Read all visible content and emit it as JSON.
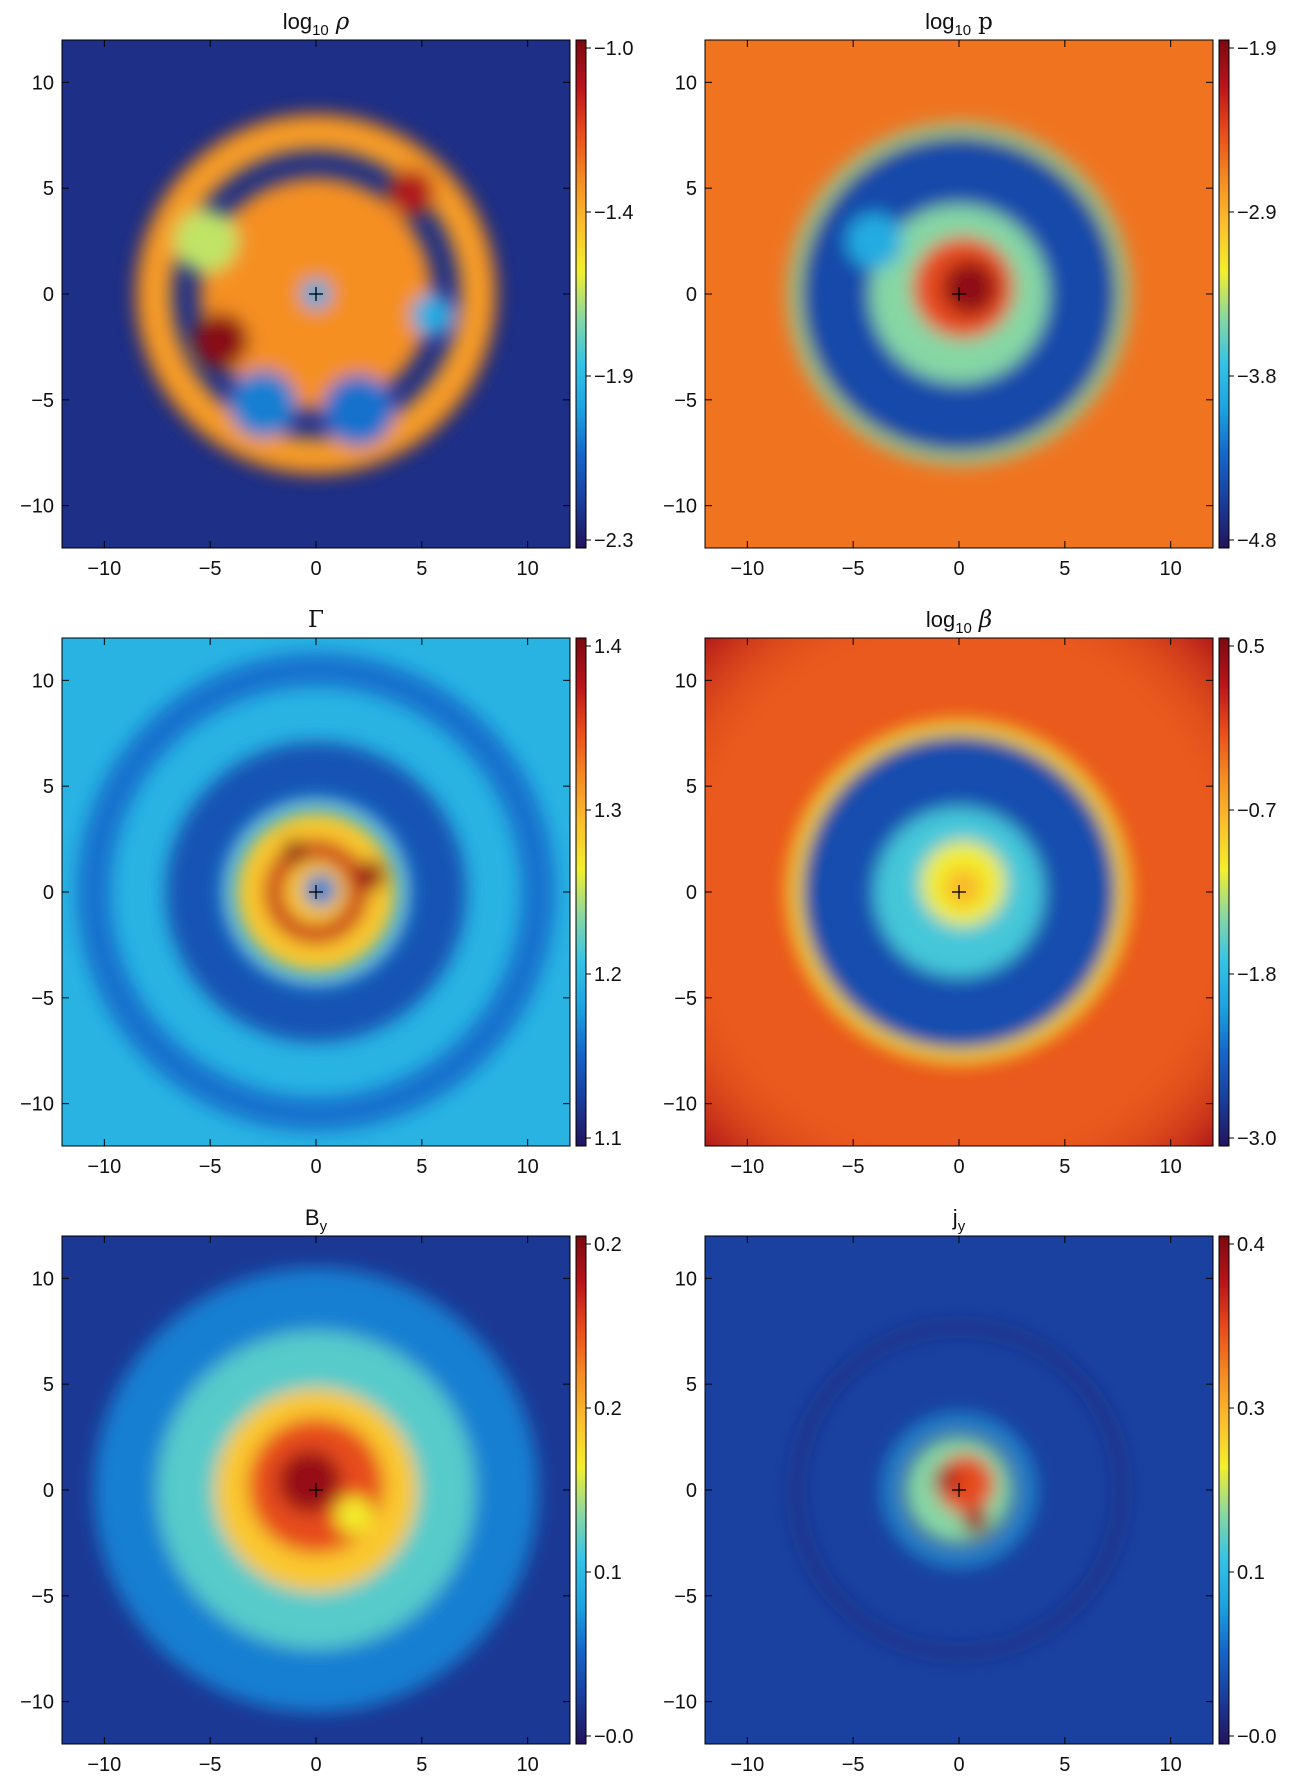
{
  "figure": {
    "colorscale": [
      "#22145c",
      "#1a3d9c",
      "#1565c8",
      "#1da2e0",
      "#35c3e6",
      "#8ad8a0",
      "#f3ef2c",
      "#fbbf2d",
      "#f48b23",
      "#e84c1b",
      "#b8141b",
      "#7a0a10"
    ]
  },
  "chart_data": [
    {
      "type": "heatmap",
      "id": "rho",
      "title_pre": "log",
      "title_sub": "10",
      "title_sym": "ρ",
      "title_sym_italic": true,
      "xlim": [
        -12,
        12
      ],
      "ylim": [
        -12,
        12
      ],
      "x_ticks": [
        -10,
        -5,
        0,
        5,
        10
      ],
      "y_ticks": [
        -10,
        -5,
        0,
        5,
        10
      ],
      "x_tick_labels": [
        "−10",
        "−5",
        "0",
        "5",
        "10"
      ],
      "y_tick_labels": [
        "−10",
        "−5",
        "0",
        "5",
        "10"
      ],
      "colorbar_range": [
        -2.3,
        -1.0
      ],
      "colorbar_labels": [
        "−1.0",
        "−1.4",
        "−1.9",
        "−2.3"
      ],
      "background_level": 0.06,
      "features": [
        {
          "kind": "ring",
          "r": 8.3,
          "width": 0.55,
          "level": 0.95
        },
        {
          "kind": "ring",
          "r": 7.6,
          "width": 1.6,
          "level": 0.7
        },
        {
          "kind": "blob",
          "x": 0,
          "y": 0,
          "r": 5.5,
          "level": 0.72
        },
        {
          "kind": "blob",
          "x": -4.5,
          "y": -2.2,
          "r": 1.3,
          "level": 0.98
        },
        {
          "kind": "blob",
          "x": -5.2,
          "y": 2.5,
          "r": 1.5,
          "level": 0.5
        },
        {
          "kind": "blob",
          "x": 4.5,
          "y": 4.8,
          "r": 1.1,
          "level": 0.92
        },
        {
          "kind": "blob",
          "x": -2.5,
          "y": -5.2,
          "r": 1.6,
          "level": 0.22
        },
        {
          "kind": "blob",
          "x": 2.0,
          "y": -5.5,
          "r": 1.7,
          "level": 0.2
        },
        {
          "kind": "blob",
          "x": 5.5,
          "y": -1.0,
          "r": 1.0,
          "level": 0.3
        },
        {
          "kind": "blob",
          "x": 0,
          "y": 0,
          "r": 0.7,
          "level": 0.3
        }
      ]
    },
    {
      "type": "heatmap",
      "id": "p",
      "title_pre": "log",
      "title_sub": "10",
      "title_sym": "p",
      "title_sym_italic": false,
      "xlim": [
        -12,
        12
      ],
      "ylim": [
        -12,
        12
      ],
      "x_ticks": [
        -10,
        -5,
        0,
        5,
        10
      ],
      "y_ticks": [
        -10,
        -5,
        0,
        5,
        10
      ],
      "x_tick_labels": [
        "−10",
        "−5",
        "0",
        "5",
        "10"
      ],
      "y_tick_labels": [
        "−10",
        "−5",
        "0",
        "5",
        "10"
      ],
      "colorbar_range": [
        -4.8,
        -1.9
      ],
      "colorbar_labels": [
        "−1.9",
        "−2.9",
        "−3.8",
        "−4.8"
      ],
      "background_level": 0.76,
      "features": [
        {
          "kind": "ring",
          "r": 7.8,
          "width": 0.5,
          "level": 0.45
        },
        {
          "kind": "disk",
          "r": 7.4,
          "level": 0.12
        },
        {
          "kind": "blob",
          "x": 0,
          "y": 0,
          "r": 4.2,
          "level": 0.45
        },
        {
          "kind": "blob",
          "x": 0.2,
          "y": 0.3,
          "r": 2.4,
          "level": 0.82
        },
        {
          "kind": "blob",
          "x": 0.5,
          "y": 0.3,
          "r": 1.3,
          "level": 0.97
        },
        {
          "kind": "blob",
          "x": -4.0,
          "y": 2.5,
          "r": 1.3,
          "level": 0.3
        }
      ]
    },
    {
      "type": "heatmap",
      "id": "gamma",
      "title_pre": "",
      "title_sub": "",
      "title_sym": "Γ",
      "title_sym_italic": false,
      "xlim": [
        -12,
        12
      ],
      "ylim": [
        -12,
        12
      ],
      "x_ticks": [
        -10,
        -5,
        0,
        5,
        10
      ],
      "y_ticks": [
        -10,
        -5,
        0,
        5,
        10
      ],
      "x_tick_labels": [
        "−10",
        "−5",
        "0",
        "5",
        "10"
      ],
      "y_tick_labels": [
        "−10",
        "−5",
        "0",
        "5",
        "10"
      ],
      "colorbar_range": [
        1.1,
        1.4
      ],
      "colorbar_labels": [
        "1.4",
        "1.3",
        "1.2",
        "1.1"
      ],
      "background_level": 0.32,
      "features": [
        {
          "kind": "ring",
          "r": 5.8,
          "width": 2.6,
          "level": 0.14
        },
        {
          "kind": "ring",
          "r": 10.5,
          "width": 1.6,
          "level": 0.2
        },
        {
          "kind": "blob",
          "x": 0,
          "y": 0,
          "r": 3.8,
          "level": 0.62
        },
        {
          "kind": "ring",
          "r": 2.0,
          "width": 0.9,
          "level": 0.88
        },
        {
          "kind": "blob",
          "x": 2.6,
          "y": 0.8,
          "r": 0.7,
          "level": 0.97
        },
        {
          "kind": "blob",
          "x": -1.0,
          "y": 1.9,
          "r": 0.6,
          "level": 0.97
        },
        {
          "kind": "blob",
          "x": 0.2,
          "y": 0.1,
          "r": 0.8,
          "level": 0.22
        }
      ]
    },
    {
      "type": "heatmap",
      "id": "beta",
      "title_pre": "log",
      "title_sub": "10",
      "title_sym": "β",
      "title_sym_italic": true,
      "xlim": [
        -12,
        12
      ],
      "ylim": [
        -12,
        12
      ],
      "x_ticks": [
        -10,
        -5,
        0,
        5,
        10
      ],
      "y_ticks": [
        -10,
        -5,
        0,
        5,
        10
      ],
      "x_tick_labels": [
        "−10",
        "−5",
        "0",
        "5",
        "10"
      ],
      "y_tick_labels": [
        "−10",
        "−5",
        "0",
        "5",
        "10"
      ],
      "colorbar_range": [
        -3.0,
        0.5
      ],
      "colorbar_labels": [
        "0.5",
        "−0.7",
        "−1.8",
        "−3.0"
      ],
      "background_level": 0.8,
      "corner_level": 0.93,
      "features": [
        {
          "kind": "ring",
          "r": 7.8,
          "width": 0.55,
          "level": 0.55
        },
        {
          "kind": "disk",
          "r": 7.4,
          "level": 0.13
        },
        {
          "kind": "blob",
          "x": 0,
          "y": 0,
          "r": 4.0,
          "level": 0.38
        },
        {
          "kind": "blob",
          "x": 0.2,
          "y": 0.4,
          "r": 2.0,
          "level": 0.55
        },
        {
          "kind": "blob",
          "x": 0.2,
          "y": 0.2,
          "r": 0.9,
          "level": 0.65
        }
      ]
    },
    {
      "type": "heatmap",
      "id": "by",
      "title_pre": "B",
      "title_sub": "y",
      "title_sym": "",
      "title_sym_italic": false,
      "xlim": [
        -12,
        12
      ],
      "ylim": [
        -12,
        12
      ],
      "x_ticks": [
        -10,
        -5,
        0,
        5,
        10
      ],
      "y_ticks": [
        -10,
        -5,
        0,
        5,
        10
      ],
      "x_tick_labels": [
        "−10",
        "−5",
        "0",
        "5",
        "10"
      ],
      "y_tick_labels": [
        "−10",
        "−5",
        "0",
        "5",
        "10"
      ],
      "colorbar_range": [
        0.0,
        0.2
      ],
      "colorbar_labels": [
        "0.2",
        "0.2",
        "0.1",
        "−0.0"
      ],
      "background_level": 0.08,
      "features": [
        {
          "kind": "blob",
          "x": 0,
          "y": 0,
          "r": 10.5,
          "level": 0.22
        },
        {
          "kind": "blob",
          "x": 0,
          "y": 0,
          "r": 7.5,
          "level": 0.4
        },
        {
          "kind": "blob",
          "x": 0,
          "y": 0,
          "r": 4.8,
          "level": 0.62
        },
        {
          "kind": "blob",
          "x": 0,
          "y": 0.2,
          "r": 3.2,
          "level": 0.82
        },
        {
          "kind": "blob",
          "x": -0.3,
          "y": 0.4,
          "r": 1.5,
          "level": 0.96
        },
        {
          "kind": "blob",
          "x": 1.8,
          "y": -1.2,
          "r": 0.9,
          "level": 0.55
        }
      ]
    },
    {
      "type": "heatmap",
      "id": "jy",
      "title_pre": "j",
      "title_sub": "y",
      "title_sym": "",
      "title_sym_italic": false,
      "xlim": [
        -12,
        12
      ],
      "ylim": [
        -12,
        12
      ],
      "x_ticks": [
        -10,
        -5,
        0,
        5,
        10
      ],
      "y_ticks": [
        -10,
        -5,
        0,
        5,
        10
      ],
      "x_tick_labels": [
        "−10",
        "−5",
        "0",
        "5",
        "10"
      ],
      "y_tick_labels": [
        "−10",
        "−5",
        "0",
        "5",
        "10"
      ],
      "colorbar_range": [
        0.0,
        0.4
      ],
      "colorbar_labels": [
        "0.4",
        "0.3",
        "0.1",
        "−0.0"
      ],
      "background_level": 0.1,
      "features": [
        {
          "kind": "ring",
          "r": 7.7,
          "width": 0.3,
          "level": 0.03
        },
        {
          "kind": "ring",
          "r": 3.3,
          "width": 0.5,
          "level": 0.28
        },
        {
          "kind": "blob",
          "x": 0,
          "y": 0,
          "r": 2.6,
          "level": 0.45
        },
        {
          "kind": "blob",
          "x": 0.3,
          "y": 0.3,
          "r": 1.4,
          "level": 0.82
        },
        {
          "kind": "blob",
          "x": 0.8,
          "y": -1.5,
          "r": 0.6,
          "level": 0.96
        },
        {
          "kind": "blob",
          "x": -0.6,
          "y": 0.5,
          "r": 0.6,
          "level": 0.93
        }
      ]
    }
  ]
}
